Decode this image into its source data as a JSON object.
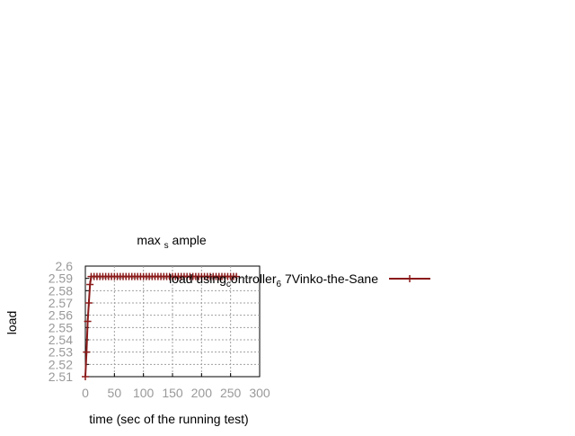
{
  "chart_data": {
    "type": "line",
    "title": {
      "base": "max",
      "subscript": "s",
      "rest": "ample"
    },
    "xlabel": "time (sec of the running test)",
    "ylabel": "load",
    "xlim": [
      0,
      300
    ],
    "ylim": [
      2.51,
      2.6
    ],
    "x_ticks": [
      "0",
      "50",
      "100",
      "150",
      "200",
      "250",
      "300"
    ],
    "y_ticks": [
      "2.51",
      "2.52",
      "2.53",
      "2.54",
      "2.55",
      "2.56",
      "2.57",
      "2.58",
      "2.59",
      "2.6"
    ],
    "grid": true,
    "legend_position": "right",
    "series": [
      {
        "name_parts": [
          {
            "text": "load using controller",
            "style": "normal"
          },
          {
            "text": "c",
            "style": "sub"
          },
          {
            "text": "ontroller",
            "style": "normal"
          },
          {
            "text": "6",
            "style": "sub"
          },
          {
            "text": " 7Vinko-the-Sane",
            "style": "normal"
          }
        ],
        "legend_label": "load using_controller_6 7Vinko-the-Sane",
        "color": "#8b1a1a",
        "marker": "plus",
        "x": [
          0,
          2,
          4,
          6,
          8,
          10,
          15,
          20,
          25,
          30,
          35,
          40,
          45,
          50,
          55,
          60,
          65,
          70,
          75,
          80,
          85,
          90,
          95,
          100,
          105,
          110,
          115,
          120,
          125,
          130,
          135,
          140,
          145,
          150,
          155,
          160,
          165,
          170,
          175,
          180,
          185,
          190,
          195,
          200,
          205,
          210,
          215,
          220,
          225,
          230,
          235,
          240,
          245,
          250,
          255,
          260
        ],
        "y": [
          2.51,
          2.53,
          2.555,
          2.57,
          2.585,
          2.5915,
          2.5915,
          2.5915,
          2.5915,
          2.5915,
          2.5915,
          2.5915,
          2.5915,
          2.5915,
          2.5915,
          2.5915,
          2.5915,
          2.5915,
          2.5915,
          2.5915,
          2.5915,
          2.5915,
          2.5915,
          2.5915,
          2.5915,
          2.5915,
          2.5915,
          2.5915,
          2.5915,
          2.5915,
          2.5915,
          2.5915,
          2.5915,
          2.5915,
          2.5915,
          2.5915,
          2.5915,
          2.5915,
          2.5915,
          2.5915,
          2.5915,
          2.5915,
          2.5915,
          2.5915,
          2.5915,
          2.5915,
          2.5915,
          2.5915,
          2.5915,
          2.5915,
          2.5915,
          2.5915,
          2.5915,
          2.5915,
          2.5915,
          2.5915
        ]
      }
    ]
  },
  "colors": {
    "grid": "#a0a0a0",
    "axis": "#000000",
    "tick_text": "#999999",
    "label_text": "#000000"
  }
}
